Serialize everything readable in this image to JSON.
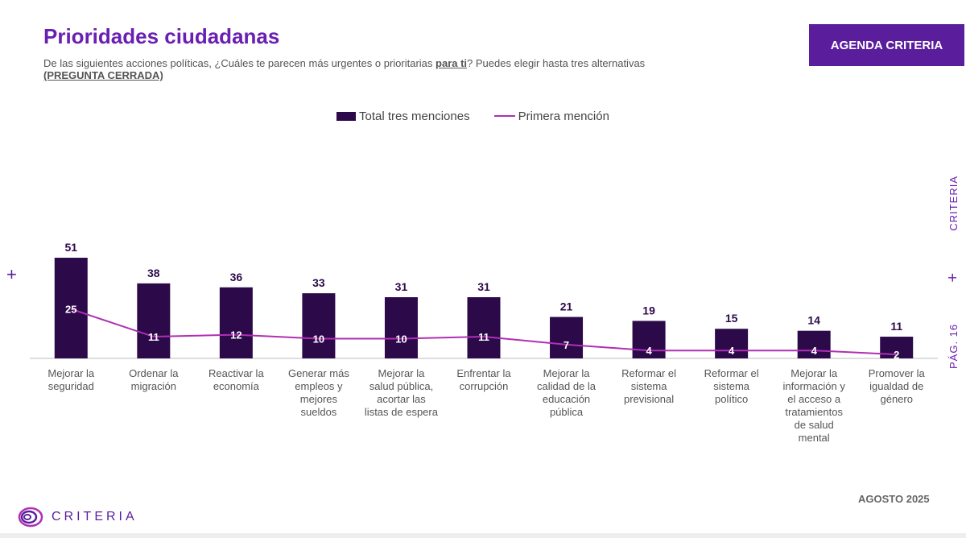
{
  "header": {
    "title": "Prioridades ciudadanas",
    "subtitle_before": "De las siguientes acciones políticas, ¿Cuáles te parecen más urgentes o prioritarias ",
    "subtitle_emph": "para ti",
    "subtitle_after": "? Puedes elegir hasta tres alternativas",
    "subtitle_note": "(PREGUNTA CERRADA)",
    "badge": "AGENDA CRITERIA"
  },
  "side": {
    "brand": "CRITERIA",
    "page": "PÁG. 16"
  },
  "footer": {
    "date": "AGOSTO 2025",
    "logo_text": "CRITERIA"
  },
  "colors": {
    "bar": "#2c0a4a",
    "line": "#b02fb3",
    "accent": "#5a1e9c",
    "title": "#6a1fb3"
  },
  "chart_data": {
    "type": "bar",
    "categories": [
      "Mejorar la seguridad",
      "Ordenar la migración",
      "Reactivar la economía",
      "Generar más empleos y mejores sueldos",
      "Mejorar la salud pública, acortar las listas de espera",
      "Enfrentar la corrupción",
      "Mejorar la calidad de la educación pública",
      "Reformar el sistema previsional",
      "Reformar el sistema político",
      "Mejorar la información y el acceso a tratamientos de salud mental",
      "Promover la igualdad de género"
    ],
    "category_lines": [
      [
        "Mejorar la",
        "seguridad"
      ],
      [
        "Ordenar la",
        "migración"
      ],
      [
        "Reactivar la",
        "economía"
      ],
      [
        "Generar más",
        "empleos y",
        "mejores",
        "sueldos"
      ],
      [
        "Mejorar la",
        "salud pública,",
        "acortar las",
        "listas de espera"
      ],
      [
        "Enfrentar la",
        "corrupción"
      ],
      [
        "Mejorar la",
        "calidad de la",
        "educación",
        "pública"
      ],
      [
        "Reformar el",
        "sistema",
        "previsional"
      ],
      [
        "Reformar el",
        "sistema",
        "político"
      ],
      [
        "Mejorar la",
        "información y",
        "el acceso a",
        "tratamientos",
        "de salud",
        "mental"
      ],
      [
        "Promover la",
        "igualdad de",
        "género"
      ]
    ],
    "series": [
      {
        "name": "Total tres menciones",
        "type": "bar",
        "values": [
          51,
          38,
          36,
          33,
          31,
          31,
          21,
          19,
          15,
          14,
          11
        ]
      },
      {
        "name": "Primera mención",
        "type": "line",
        "values": [
          25,
          11,
          12,
          10,
          10,
          11,
          7,
          4,
          4,
          4,
          2
        ]
      }
    ],
    "ylim": [
      0,
      51
    ],
    "legend": "top-center",
    "grid": false
  }
}
